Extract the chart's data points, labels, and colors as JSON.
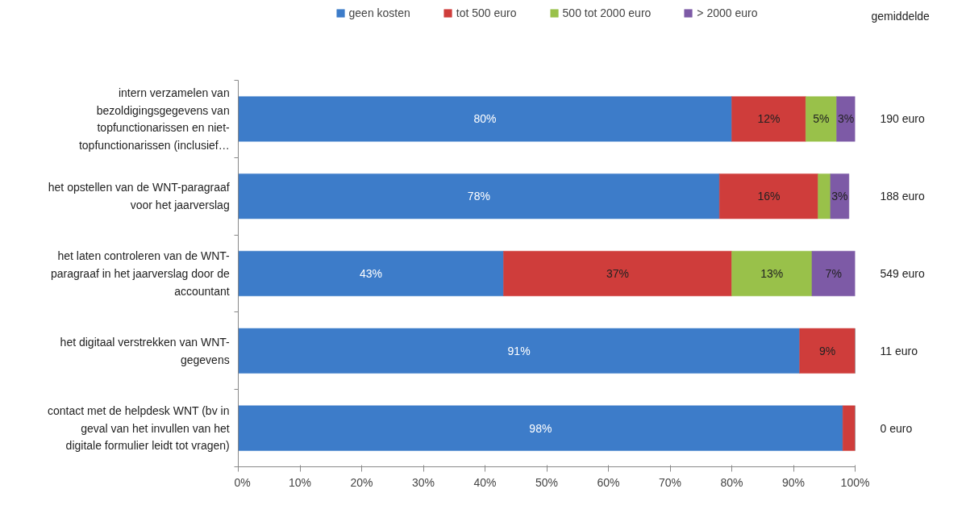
{
  "chart_data": {
    "type": "bar",
    "orientation": "horizontal",
    "stacked": true,
    "categories": [
      "intern verzamelen van bezoldigingsgegevens van topfunctionarissen en niet-topfunctionarissen (inclusief…",
      "het opstellen van de WNT-paragraaf voor het jaarverslag",
      "het laten controleren van de WNT-paragraaf in het jaarverslag door de accountant",
      "het digitaal verstrekken van WNT-gegevens",
      "contact met de helpdesk WNT (bv in geval van het invullen van het digitale formulier leidt tot vragen)"
    ],
    "series": [
      {
        "name": "geen kosten",
        "color": "#3d7cc9",
        "values": [
          80,
          78,
          43,
          91,
          98
        ],
        "value_labels": [
          "80%",
          "78%",
          "43%",
          "91%",
          "98%"
        ]
      },
      {
        "name": "tot 500 euro",
        "color": "#cf3d3b",
        "values": [
          12,
          16,
          37,
          9,
          2
        ],
        "value_labels": [
          "12%",
          "16%",
          "37%",
          "9%",
          null
        ]
      },
      {
        "name": "500 tot 2000 euro",
        "color": "#99c14a",
        "values": [
          5,
          2,
          13,
          0,
          0
        ],
        "value_labels": [
          "5%",
          null,
          "13%",
          null,
          null
        ]
      },
      {
        "name": "> 2000 euro",
        "color": "#7d5aa6",
        "values": [
          3,
          3,
          7,
          0,
          0
        ],
        "value_labels": [
          "3%",
          "3%",
          "7%",
          null,
          null
        ]
      }
    ],
    "xlim": [
      0,
      100
    ],
    "xticks": [
      {
        "value": 0,
        "label": "0%"
      },
      {
        "value": 10,
        "label": "10%"
      },
      {
        "value": 20,
        "label": "20%"
      },
      {
        "value": 30,
        "label": "30%"
      },
      {
        "value": 40,
        "label": "40%"
      },
      {
        "value": 50,
        "label": "50%"
      },
      {
        "value": 60,
        "label": "60%"
      },
      {
        "value": 70,
        "label": "70%"
      },
      {
        "value": 80,
        "label": "80%"
      },
      {
        "value": 90,
        "label": "90%"
      },
      {
        "value": 100,
        "label": "100%"
      }
    ],
    "grid": false,
    "legend": "top",
    "annotations": [
      "gemiddelde",
      "190 euro",
      "188 euro",
      "549 euro",
      "11 euro",
      "0 euro"
    ]
  }
}
